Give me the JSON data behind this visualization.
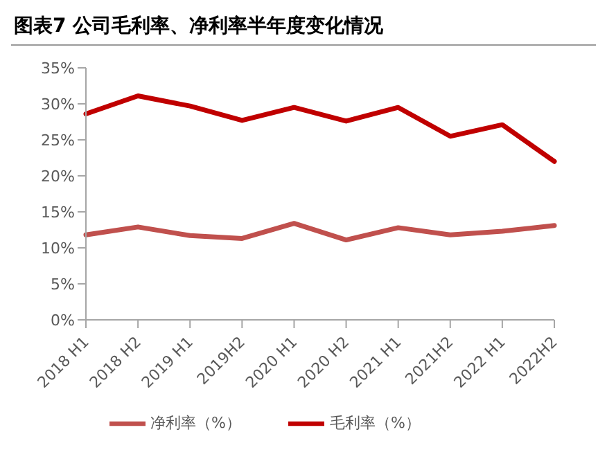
{
  "chart_data": {
    "type": "line",
    "title": "图表7 公司毛利率、净利率半年度变化情况",
    "categories": [
      "2018 H1",
      "2018 H2",
      "2019 H1",
      "2019H2",
      "2020 H1",
      "2020 H2",
      "2021 H1",
      "2021H2",
      "2022 H1",
      "2022H2"
    ],
    "series": [
      {
        "name": "毛利率（%）",
        "color": "#c00000",
        "values": [
          28.6,
          31.1,
          29.7,
          27.7,
          29.5,
          27.6,
          29.5,
          25.5,
          27.1,
          22.0
        ]
      },
      {
        "name": "净利率（%）",
        "color": "#c0504d",
        "values": [
          11.8,
          12.9,
          11.7,
          11.3,
          13.4,
          11.1,
          12.8,
          11.8,
          12.3,
          13.1
        ]
      }
    ],
    "ylim": [
      0,
      35
    ],
    "yticks": [
      {
        "value": 0,
        "label": "0%"
      },
      {
        "value": 5,
        "label": "5%"
      },
      {
        "value": 10,
        "label": "10%"
      },
      {
        "value": 15,
        "label": "15%"
      },
      {
        "value": 20,
        "label": "20%"
      },
      {
        "value": 25,
        "label": "25%"
      },
      {
        "value": 30,
        "label": "30%"
      },
      {
        "value": 35,
        "label": "35%"
      }
    ],
    "grid": false,
    "legend": "bottom",
    "marker": "none",
    "line_style": "solid"
  }
}
